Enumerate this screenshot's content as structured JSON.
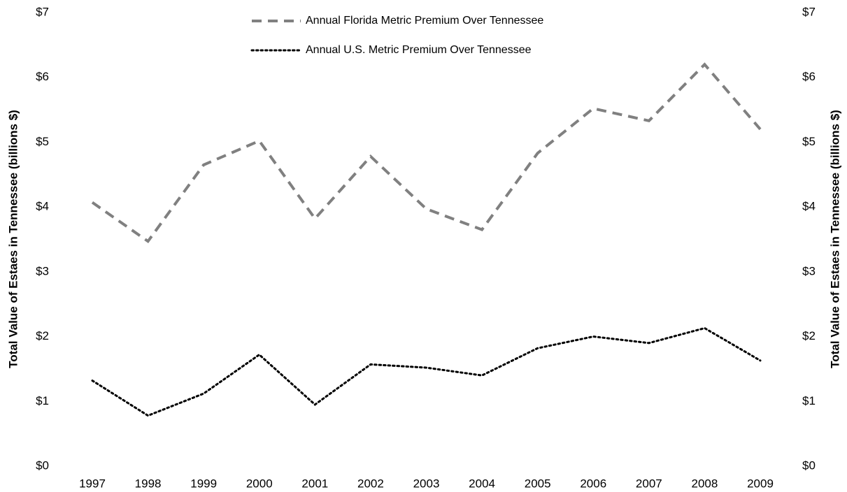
{
  "chart_data": {
    "type": "line",
    "ylabel": "Total Value of Estaes in Tennessee (billions $)",
    "y2label": "Total Value of Estaes in Tennessee (billions $)",
    "categories": [
      "1997",
      "1998",
      "1999",
      "2000",
      "2001",
      "2002",
      "2003",
      "2004",
      "2005",
      "2006",
      "2007",
      "2008",
      "2009"
    ],
    "series": [
      {
        "name": "Annual Florida Metric Premium Over Tennessee",
        "color": "#808080",
        "dash": "dashed",
        "values": [
          4.07,
          3.47,
          4.65,
          5.02,
          3.82,
          4.78,
          3.97,
          3.65,
          4.83,
          5.52,
          5.33,
          6.2,
          5.2
        ]
      },
      {
        "name": "Annual U.S. Metric Premium Over Tennessee",
        "color": "#000000",
        "dash": "dotted",
        "values": [
          1.32,
          0.78,
          1.12,
          1.72,
          0.95,
          1.57,
          1.52,
          1.4,
          1.82,
          2.0,
          1.9,
          2.13,
          1.63
        ]
      }
    ],
    "ylim": [
      0,
      7
    ],
    "yticks": [
      {
        "value": 0,
        "label": "$0"
      },
      {
        "value": 1,
        "label": "$1"
      },
      {
        "value": 2,
        "label": "$2"
      },
      {
        "value": 3,
        "label": "$3"
      },
      {
        "value": 4,
        "label": "$4"
      },
      {
        "value": 5,
        "label": "$5"
      },
      {
        "value": 6,
        "label": "$6"
      },
      {
        "value": 7,
        "label": "$7"
      }
    ],
    "y2lim": [
      0,
      7
    ],
    "y2ticks": [
      {
        "value": 0,
        "label": "$0"
      },
      {
        "value": 1,
        "label": "$1"
      },
      {
        "value": 2,
        "label": "$2"
      },
      {
        "value": 3,
        "label": "$3"
      },
      {
        "value": 4,
        "label": "$4"
      },
      {
        "value": 5,
        "label": "$5"
      },
      {
        "value": 6,
        "label": "$6"
      },
      {
        "value": 7,
        "label": "$7"
      }
    ],
    "grid": false
  }
}
